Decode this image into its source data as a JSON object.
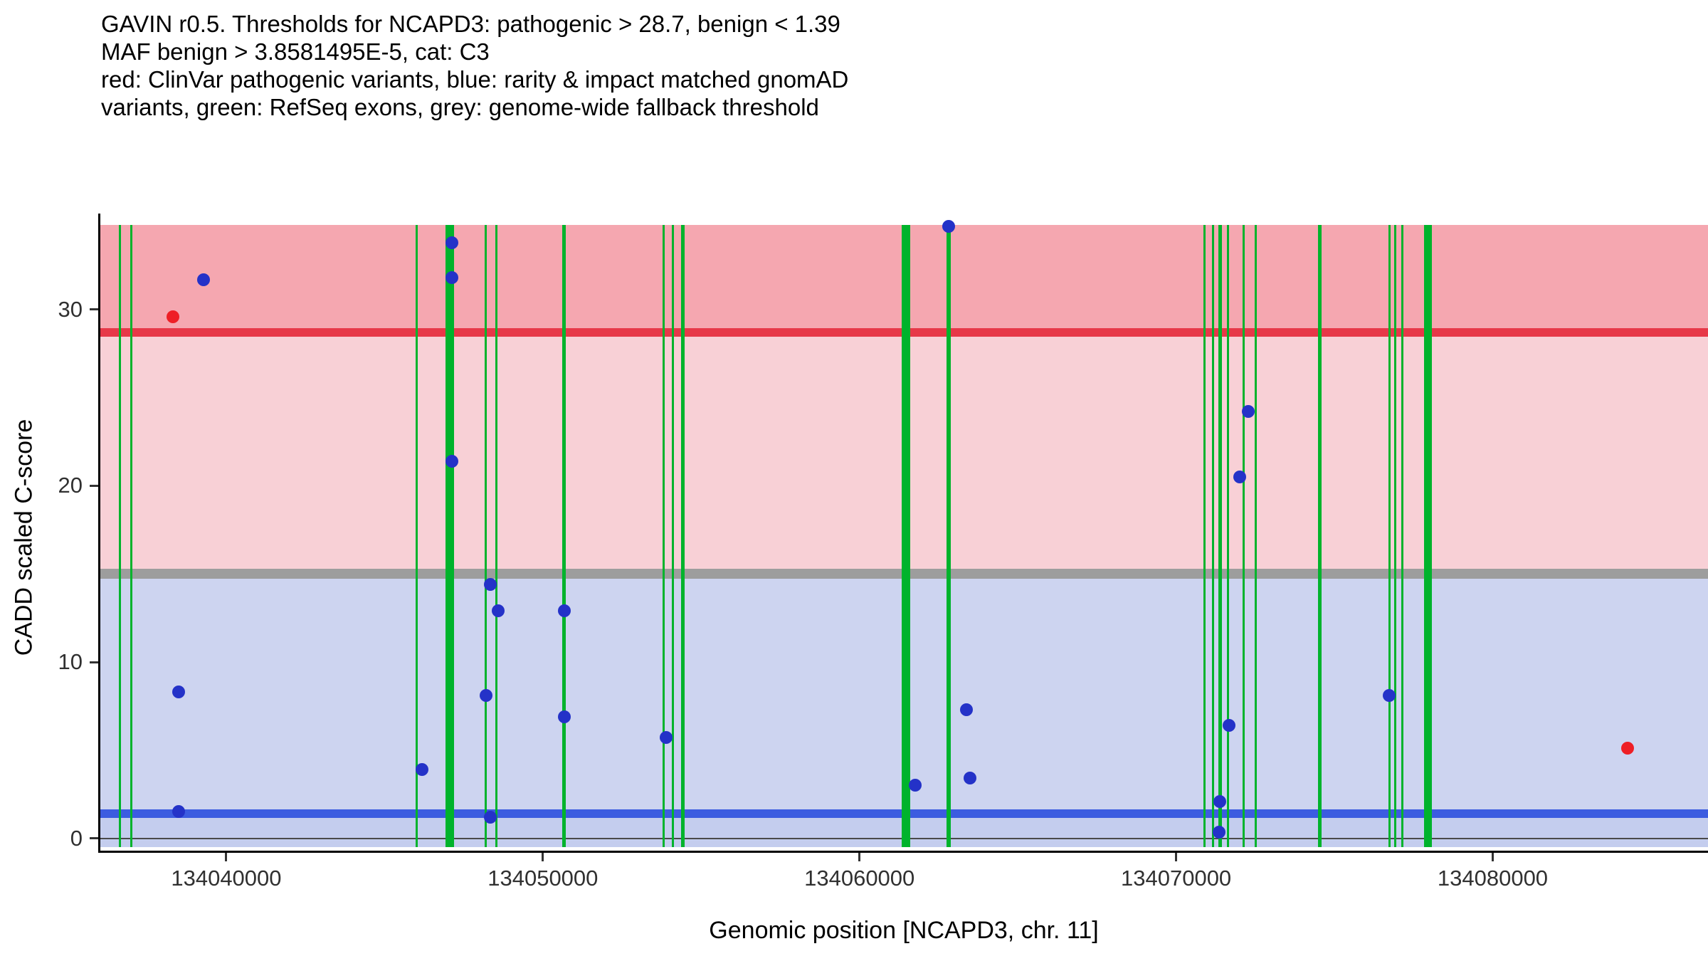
{
  "title": {
    "lines": [
      "GAVIN r0.5. Thresholds for NCAPD3: pathogenic > 28.7, benign < 1.39",
      "MAF benign > 3.8581495E-5, cat: C3",
      "red: ClinVar pathogenic variants, blue: rarity & impact matched gnomAD",
      "variants, green: RefSeq exons, grey: genome-wide fallback threshold"
    ]
  },
  "chart_data": {
    "type": "scatter",
    "title": "GAVIN r0.5. Thresholds for NCAPD3",
    "xlabel": "Genomic position [NCAPD3, chr. 11]",
    "ylabel": "CADD scaled C-score",
    "xlim": [
      134036000,
      134086800
    ],
    "ylim": [
      -0.5,
      34.8
    ],
    "x_ticks": [
      134040000,
      134050000,
      134060000,
      134070000,
      134080000
    ],
    "y_ticks": [
      0,
      10,
      20,
      30
    ],
    "grid": false,
    "legend": "none",
    "thresholds": {
      "pathogenic_cadd": 28.7,
      "benign_cadd": 1.39,
      "genomewide_fallback_cadd": 15,
      "maf_benign": "3.8581495E-5",
      "category": "C3"
    },
    "bands": [
      {
        "name": "band-pathogenic-zone",
        "from": 28.7,
        "to": 34.8,
        "color": "#f5a7b0"
      },
      {
        "name": "band-vus-pink-zone",
        "from": 15,
        "to": 28.7,
        "color": "#f8d0d6"
      },
      {
        "name": "band-blue-zone",
        "from": 1.39,
        "to": 15,
        "color": "#cdd4f0"
      },
      {
        "name": "band-benign-zone",
        "from": -0.5,
        "to": 1.39,
        "color": "#c4cdee"
      }
    ],
    "hlines": [
      {
        "name": "fallback-threshold-line",
        "y": 15,
        "thick": 14,
        "color": "#9d9d9d"
      },
      {
        "name": "pathogenic-threshold-line",
        "y": 28.7,
        "thick": 12,
        "color": "#e73848"
      },
      {
        "name": "benign-threshold-line",
        "y": 1.39,
        "thick": 12,
        "color": "#3c5ce0"
      },
      {
        "name": "zero-line",
        "y": 0,
        "thick": 2,
        "color": "#4a4a4a"
      }
    ],
    "exons": [
      {
        "pos": 134036650,
        "w": 3
      },
      {
        "pos": 134036990,
        "w": 3
      },
      {
        "pos": 134046020,
        "w": 3
      },
      {
        "pos": 134047060,
        "w": 12
      },
      {
        "pos": 134048200,
        "w": 3
      },
      {
        "pos": 134048540,
        "w": 3
      },
      {
        "pos": 134050670,
        "w": 5
      },
      {
        "pos": 134053820,
        "w": 3
      },
      {
        "pos": 134054110,
        "w": 3
      },
      {
        "pos": 134054430,
        "w": 5
      },
      {
        "pos": 134061460,
        "w": 12
      },
      {
        "pos": 134062810,
        "w": 6
      },
      {
        "pos": 134070900,
        "w": 3
      },
      {
        "pos": 134071170,
        "w": 3
      },
      {
        "pos": 134071395,
        "w": 5
      },
      {
        "pos": 134071640,
        "w": 3
      },
      {
        "pos": 134072140,
        "w": 3
      },
      {
        "pos": 134072520,
        "w": 3
      },
      {
        "pos": 134074540,
        "w": 5
      },
      {
        "pos": 134076740,
        "w": 3
      },
      {
        "pos": 134076920,
        "w": 3
      },
      {
        "pos": 134077150,
        "w": 3
      },
      {
        "pos": 134077950,
        "w": 11
      }
    ],
    "points": {
      "clinvar_pathogenic": [
        {
          "x": 134038320,
          "y": 29.6
        },
        {
          "x": 134084270,
          "y": 5.1
        }
      ],
      "gnomad_matched": [
        {
          "x": 134039280,
          "y": 31.7
        },
        {
          "x": 134038490,
          "y": 8.3
        },
        {
          "x": 134038490,
          "y": 1.5
        },
        {
          "x": 134046180,
          "y": 3.9
        },
        {
          "x": 134047120,
          "y": 33.8
        },
        {
          "x": 134047120,
          "y": 31.8
        },
        {
          "x": 134047120,
          "y": 21.4
        },
        {
          "x": 134048340,
          "y": 14.4
        },
        {
          "x": 134048580,
          "y": 12.9
        },
        {
          "x": 134048200,
          "y": 8.1
        },
        {
          "x": 134048340,
          "y": 1.2
        },
        {
          "x": 134050670,
          "y": 12.9
        },
        {
          "x": 134050670,
          "y": 6.9
        },
        {
          "x": 134053890,
          "y": 5.7
        },
        {
          "x": 134062810,
          "y": 34.7
        },
        {
          "x": 134061750,
          "y": 3.0
        },
        {
          "x": 134063370,
          "y": 7.3
        },
        {
          "x": 134063480,
          "y": 3.4
        },
        {
          "x": 134071390,
          "y": 2.1
        },
        {
          "x": 134071680,
          "y": 6.4
        },
        {
          "x": 134072020,
          "y": 20.5
        },
        {
          "x": 134072290,
          "y": 24.2
        },
        {
          "x": 134071350,
          "y": 0.35
        },
        {
          "x": 134076740,
          "y": 8.1
        }
      ]
    },
    "colors": {
      "exon_green": "#00b32c",
      "point_blue": "#2432c8",
      "point_red": "#ee1f26",
      "axis": "#000000",
      "tick_label": "#303030"
    }
  }
}
